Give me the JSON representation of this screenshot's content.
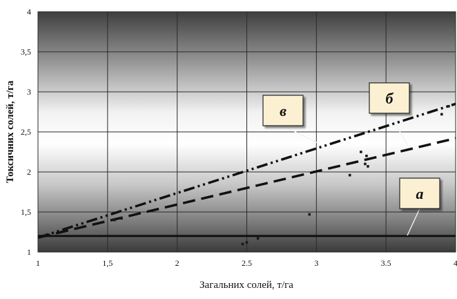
{
  "chart_data": {
    "type": "scatter",
    "title": "",
    "xlabel": "Загальних солей, т/га",
    "ylabel": "Токсичних солей, т/га",
    "xlim": [
      1,
      4
    ],
    "ylim": [
      1,
      4
    ],
    "x_ticks": [
      1,
      1.5,
      2,
      2.5,
      3,
      3.5,
      4
    ],
    "x_tick_labels": [
      "1",
      "1,5",
      "2",
      "2.5",
      "3",
      "3.5",
      "4"
    ],
    "y_ticks": [
      1,
      1.5,
      2,
      2.5,
      3,
      3.5,
      4
    ],
    "y_tick_labels": [
      "1",
      "1,5",
      "2",
      "2,5",
      "3",
      "3,5",
      "4"
    ],
    "grid": true,
    "background": "vertical gradient, dark grey at top and bottom, white in the middle",
    "points": [
      {
        "x": 1.45,
        "y": 1.2
      },
      {
        "x": 1.55,
        "y": 1.4
      },
      {
        "x": 1.6,
        "y": 1.42
      },
      {
        "x": 2.47,
        "y": 1.1
      },
      {
        "x": 2.5,
        "y": 1.12
      },
      {
        "x": 2.58,
        "y": 1.17
      },
      {
        "x": 2.95,
        "y": 1.47
      },
      {
        "x": 3.24,
        "y": 1.96
      },
      {
        "x": 3.32,
        "y": 2.25
      },
      {
        "x": 3.35,
        "y": 2.1
      },
      {
        "x": 3.36,
        "y": 2.2
      },
      {
        "x": 3.37,
        "y": 2.07
      },
      {
        "x": 3.9,
        "y": 2.72
      },
      {
        "x": 3.95,
        "y": 2.82
      }
    ],
    "lines": [
      {
        "label": "а",
        "style": "solid",
        "x": [
          1,
          4
        ],
        "y": [
          1.2,
          1.2
        ]
      },
      {
        "label": "б",
        "style": "dashed",
        "x": [
          1,
          4
        ],
        "y": [
          1.18,
          2.42
        ]
      },
      {
        "label": "в",
        "style": "dash-dot-dot",
        "x": [
          1,
          4
        ],
        "y": [
          1.18,
          2.85
        ]
      }
    ],
    "annotations": [
      {
        "text": "в",
        "target": "в"
      },
      {
        "text": "б",
        "target": "б"
      },
      {
        "text": "а",
        "target": "а"
      }
    ]
  }
}
